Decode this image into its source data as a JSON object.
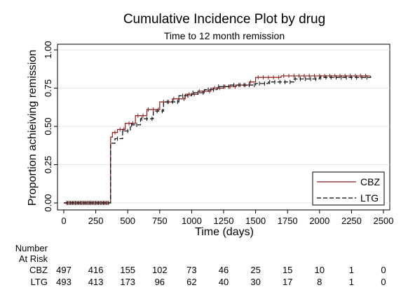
{
  "chart_data": {
    "type": "line",
    "title": "Cumulative Incidence Plot by drug",
    "subtitle": "Time to 12 month remission",
    "xlabel": "Time (days)",
    "ylabel": "Proportion achieiving remission",
    "xlim": [
      0,
      2500
    ],
    "ylim": [
      0,
      1
    ],
    "xticks": [
      "0",
      "250",
      "500",
      "750",
      "1000",
      "1250",
      "1500",
      "1750",
      "2000",
      "2250",
      "2500"
    ],
    "yticks": [
      "0.00",
      "0.25",
      "0.50",
      "0.75",
      "1.00"
    ],
    "grid": true,
    "legend_position": "bottom-right",
    "series": [
      {
        "name": "CBZ",
        "color": "#8b1a1a",
        "dash": "solid",
        "points": [
          [
            0,
            0
          ],
          [
            365,
            0
          ],
          [
            366,
            0.43
          ],
          [
            380,
            0.46
          ],
          [
            420,
            0.48
          ],
          [
            480,
            0.52
          ],
          [
            560,
            0.57
          ],
          [
            650,
            0.61
          ],
          [
            750,
            0.66
          ],
          [
            850,
            0.68
          ],
          [
            950,
            0.71
          ],
          [
            1050,
            0.73
          ],
          [
            1150,
            0.75
          ],
          [
            1250,
            0.76
          ],
          [
            1350,
            0.77
          ],
          [
            1450,
            0.79
          ],
          [
            1500,
            0.82
          ],
          [
            1700,
            0.83
          ],
          [
            2400,
            0.83
          ]
        ],
        "censor_x": [
          20,
          40,
          60,
          80,
          100,
          120,
          140,
          160,
          180,
          200,
          220,
          240,
          260,
          280,
          300,
          320,
          340,
          400,
          440,
          470,
          510,
          540,
          580,
          620,
          660,
          700,
          740,
          780,
          820,
          860,
          900,
          940,
          980,
          1020,
          1060,
          1100,
          1140,
          1180,
          1220,
          1260,
          1300,
          1340,
          1380,
          1420,
          1460,
          1520,
          1560,
          1600,
          1640,
          1680,
          1720,
          1760,
          1800,
          1840,
          1880,
          1920,
          1960,
          2000,
          2040,
          2080,
          2120,
          2160,
          2200,
          2240,
          2280,
          2320,
          2360
        ]
      },
      {
        "name": "LTG",
        "color": "#000000",
        "dash": "dashed",
        "points": [
          [
            0,
            0
          ],
          [
            365,
            0
          ],
          [
            366,
            0.39
          ],
          [
            400,
            0.42
          ],
          [
            460,
            0.47
          ],
          [
            520,
            0.51
          ],
          [
            600,
            0.55
          ],
          [
            700,
            0.6
          ],
          [
            780,
            0.66
          ],
          [
            900,
            0.7
          ],
          [
            1000,
            0.72
          ],
          [
            1100,
            0.74
          ],
          [
            1200,
            0.76
          ],
          [
            1300,
            0.77
          ],
          [
            1400,
            0.77
          ],
          [
            1500,
            0.78
          ],
          [
            1600,
            0.79
          ],
          [
            1800,
            0.81
          ],
          [
            2000,
            0.82
          ],
          [
            2400,
            0.83
          ]
        ],
        "censor_x": [
          30,
          50,
          70,
          90,
          110,
          130,
          150,
          170,
          190,
          210,
          230,
          250,
          270,
          290,
          310,
          330,
          350,
          420,
          460,
          500,
          530,
          570,
          610,
          650,
          690,
          730,
          770,
          810,
          850,
          890,
          930,
          970,
          1010,
          1050,
          1090,
          1130,
          1170,
          1210,
          1250,
          1290,
          1330,
          1370,
          1410,
          1450,
          1490,
          1530,
          1570,
          1610,
          1650,
          1690,
          1730,
          1770,
          1810,
          1850,
          1890,
          1930,
          1970,
          2010,
          2050,
          2090,
          2130,
          2170,
          2210,
          2250,
          2290,
          2330,
          2370
        ]
      }
    ]
  },
  "risk_table": {
    "header_line1": "Number",
    "header_line2": "At Risk",
    "rows": [
      {
        "label": "CBZ",
        "values": [
          "497",
          "416",
          "155",
          "102",
          "73",
          "46",
          "25",
          "15",
          "10",
          "1",
          "0"
        ]
      },
      {
        "label": "LTG",
        "values": [
          "493",
          "413",
          "173",
          "96",
          "62",
          "40",
          "30",
          "17",
          "8",
          "1",
          "0"
        ]
      }
    ]
  }
}
